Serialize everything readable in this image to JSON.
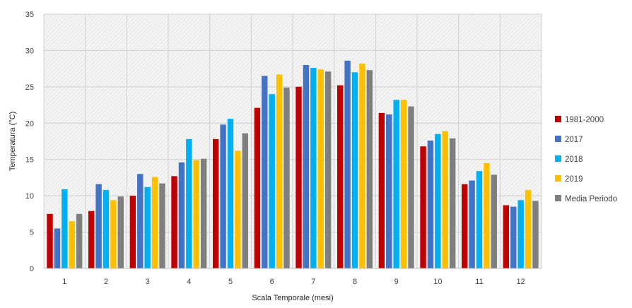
{
  "chart_data": {
    "type": "bar",
    "title": "",
    "xlabel": "Scala Temporale (mesi)",
    "ylabel": "Temperatura (°C)",
    "ylim": [
      0,
      35
    ],
    "yticks": [
      0,
      5,
      10,
      15,
      20,
      25,
      30,
      35
    ],
    "categories": [
      "1",
      "2",
      "3",
      "4",
      "5",
      "6",
      "7",
      "8",
      "9",
      "10",
      "11",
      "12"
    ],
    "grid": true,
    "legend_position": "right",
    "series": [
      {
        "name": "1981-2000",
        "color": "#c00000",
        "values": [
          7.5,
          7.9,
          10.0,
          12.7,
          17.8,
          22.1,
          25.0,
          25.2,
          21.4,
          16.8,
          11.6,
          8.7
        ]
      },
      {
        "name": "2017",
        "color": "#4472c4",
        "values": [
          5.5,
          11.6,
          13.0,
          14.6,
          19.8,
          26.5,
          28.0,
          28.6,
          21.2,
          17.6,
          12.1,
          8.5
        ]
      },
      {
        "name": "2018",
        "color": "#00b0f0",
        "values": [
          10.9,
          10.8,
          11.2,
          17.8,
          20.6,
          24.0,
          27.6,
          27.0,
          23.2,
          18.5,
          13.4,
          9.4
        ]
      },
      {
        "name": "2019",
        "color": "#ffc000",
        "values": [
          6.5,
          9.4,
          12.6,
          14.9,
          16.2,
          26.7,
          27.4,
          28.2,
          23.2,
          18.9,
          14.5,
          10.8
        ]
      },
      {
        "name": "Media Periodo",
        "color": "#7f7f7f",
        "values": [
          7.5,
          9.9,
          11.7,
          15.1,
          18.6,
          24.9,
          27.1,
          27.3,
          22.3,
          17.9,
          12.9,
          9.3
        ]
      }
    ]
  }
}
